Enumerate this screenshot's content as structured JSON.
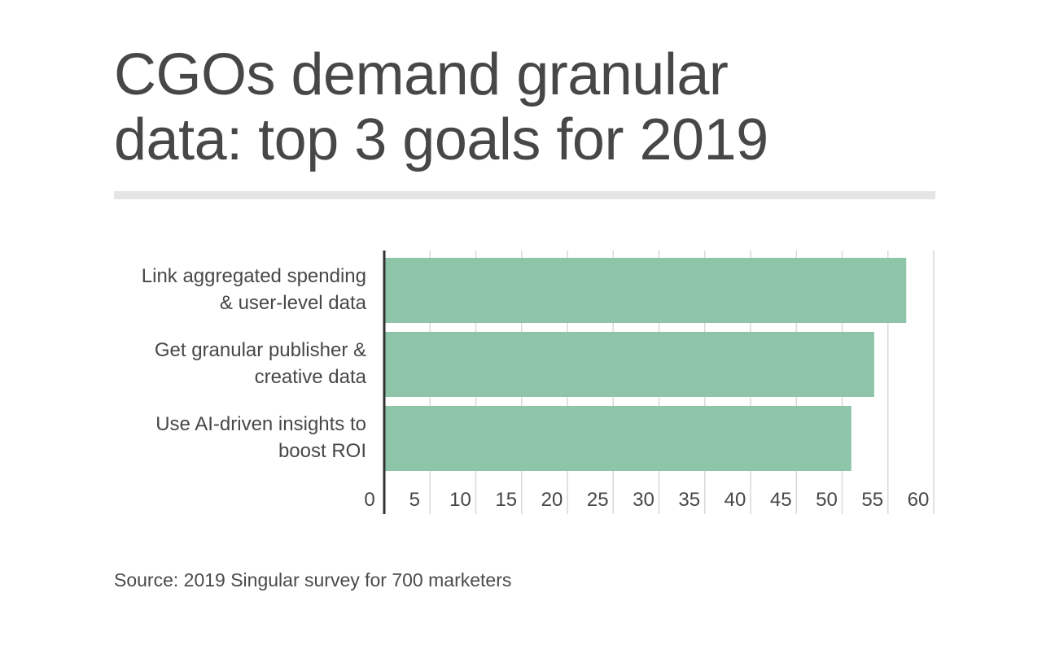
{
  "title_lines": [
    "CGOs demand granular",
    "data: top 3 goals for 2019"
  ],
  "source": "Source: 2019 Singular survey for 700 marketers",
  "colors": {
    "bar": "#8ec4a8",
    "grid": "#d9d9d9",
    "axis": "#333333",
    "text": "#474747",
    "rule": "#e5e5e5"
  },
  "chart_data": {
    "type": "bar",
    "orientation": "horizontal",
    "categories": [
      [
        "Link aggregated spending",
        "& user-level data"
      ],
      [
        "Get granular publisher &",
        "creative data"
      ],
      [
        "Use AI-driven insights to",
        "boost ROI"
      ]
    ],
    "values": [
      57,
      53.5,
      51
    ],
    "xlim": [
      0,
      60
    ],
    "ticks": [
      0,
      5,
      10,
      15,
      20,
      25,
      30,
      35,
      40,
      45,
      50,
      55,
      60
    ],
    "grid": true,
    "xlabel": "",
    "ylabel": ""
  }
}
